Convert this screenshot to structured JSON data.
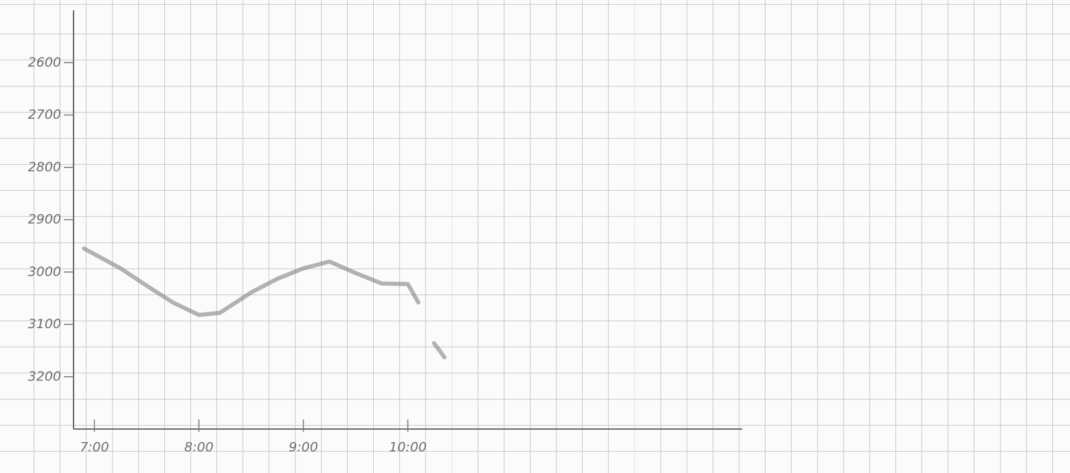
{
  "chart_data": {
    "type": "line",
    "x": [
      6.9,
      7.25,
      7.5,
      7.75,
      8.0,
      8.2,
      8.5,
      8.75,
      9.0,
      9.25,
      9.5,
      9.75,
      10.0,
      10.1,
      null,
      10.25,
      10.3,
      10.35
    ],
    "series": [
      {
        "color": "#777777",
        "values": [
          2955,
          2993,
          3026,
          3058,
          3082,
          3078,
          3039,
          3013,
          2993,
          2980,
          3002,
          3022,
          3023,
          3058,
          null,
          3136,
          3149,
          3163
        ]
      }
    ],
    "xlim": [
      6.8,
      13.2
    ],
    "xticks": [
      {
        "value": 7,
        "label": "7:00"
      },
      {
        "value": 8,
        "label": "8:00"
      },
      {
        "value": 9,
        "label": "9:00"
      },
      {
        "value": 10,
        "label": "10:00"
      }
    ],
    "ylim": [
      3300,
      2500
    ],
    "yticks": [
      2600,
      2700,
      2800,
      2900,
      3000,
      3100,
      3200
    ],
    "grid": false
  }
}
